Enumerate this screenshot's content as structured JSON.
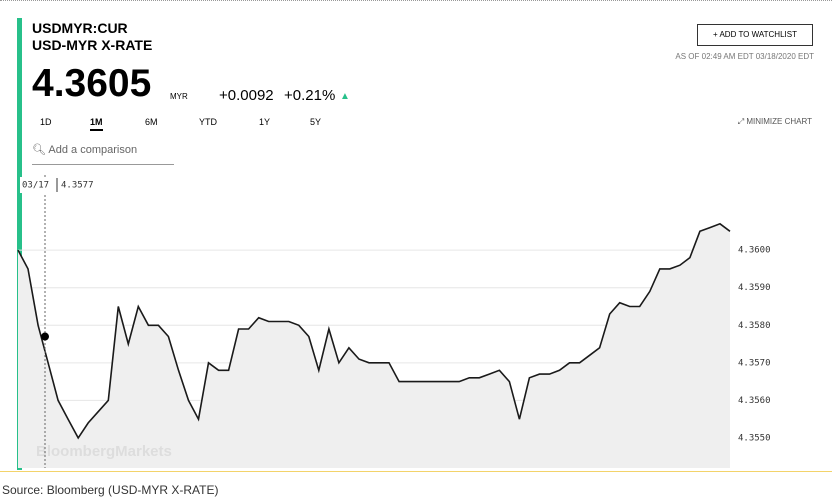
{
  "header": {
    "symbol": "USDMYR:CUR",
    "name": "USD-MYR X-RATE",
    "watchlist": "ADD TO WATCHLIST",
    "as_of": "AS OF 02:49 AM EDT 03/18/2020 EDT",
    "price": "4.3605",
    "currency": "MYR",
    "change": "+0.0092",
    "change_pct": "+0.21%",
    "ranges": [
      "1D",
      "1M",
      "6M",
      "YTD",
      "1Y",
      "5Y"
    ],
    "minimize": "MINIMIZE CHART",
    "comparison": "Add a comparison"
  },
  "chart_data": {
    "type": "line",
    "color": "#1a1a1a",
    "area_color": "#efefef",
    "watermark": "BloombergMarkets",
    "values": [
      4.36,
      4.3595,
      4.358,
      4.357,
      4.356,
      4.3555,
      4.355,
      4.3554,
      4.3557,
      4.356,
      4.3585,
      4.3575,
      4.3585,
      4.358,
      4.358,
      4.3577,
      4.3568,
      4.356,
      4.3555,
      4.357,
      4.3568,
      4.3568,
      4.3579,
      4.3579,
      4.3582,
      4.3581,
      4.3581,
      4.3581,
      4.358,
      4.3577,
      4.3568,
      4.3579,
      4.357,
      4.3574,
      4.3571,
      4.357,
      4.357,
      4.357,
      4.3565,
      4.3565,
      4.3565,
      4.3565,
      4.3565,
      4.3565,
      4.3565,
      4.3566,
      4.3566,
      4.3567,
      4.3568,
      4.3565,
      4.3555,
      4.3566,
      4.3567,
      4.3567,
      4.3568,
      4.357,
      4.357,
      4.3572,
      4.3574,
      4.3583,
      4.3586,
      4.3585,
      4.3585,
      4.3589,
      4.3595,
      4.3595,
      4.3596,
      4.3598,
      4.3605,
      4.3606,
      4.3607,
      4.3605
    ],
    "ylim": [
      4.3542,
      4.362
    ],
    "yticks": [
      {
        "value": 4.355,
        "label": "4.3550"
      },
      {
        "value": 4.356,
        "label": "4.3560"
      },
      {
        "value": 4.357,
        "label": "4.3570"
      },
      {
        "value": 4.358,
        "label": "4.3580"
      },
      {
        "value": 4.359,
        "label": "4.3590"
      },
      {
        "value": 4.36,
        "label": "4.3600"
      }
    ],
    "grid": true,
    "hover": {
      "date": "03/17",
      "value": 4.3577
    }
  },
  "source": "Source: Bloomberg  (USD-MYR X-RATE)"
}
